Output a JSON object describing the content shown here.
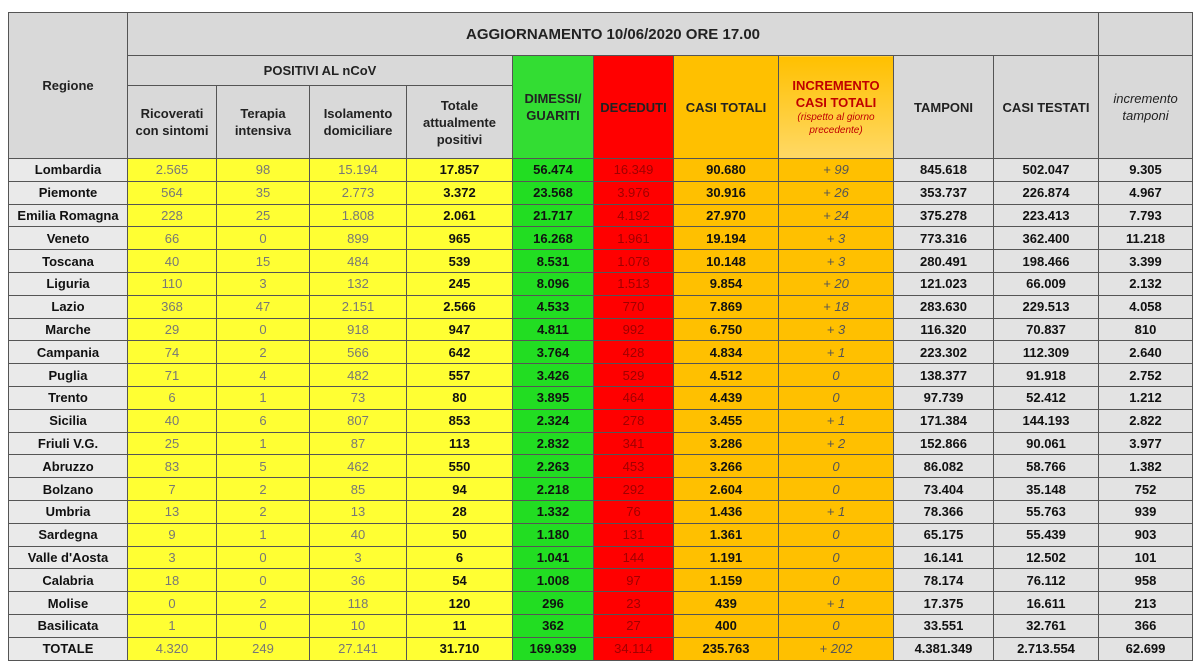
{
  "header": {
    "title": "AGGIORNAMENTO 10/06/2020 ORE 17.00",
    "regione": "Regione",
    "group": "POSITIVI AL nCoV",
    "columns": [
      "Ricoverati con sintomi",
      "Terapia intensiva",
      "Isolamento domiciliare",
      "Totale attualmente positivi",
      "DIMESSI/ GUARITI",
      "DECEDUTI",
      "CASI TOTALI",
      "INCREMENTO CASI TOTALI",
      "TAMPONI",
      "CASI TESTATI",
      "incremento tamponi"
    ],
    "incremento_note": "(rispetto al giorno precedente)"
  },
  "rows": [
    [
      "Lombardia",
      "2.565",
      "98",
      "15.194",
      "17.857",
      "56.474",
      "16.349",
      "90.680",
      "+ 99",
      "845.618",
      "502.047",
      "9.305"
    ],
    [
      "Piemonte",
      "564",
      "35",
      "2.773",
      "3.372",
      "23.568",
      "3.976",
      "30.916",
      "+ 26",
      "353.737",
      "226.874",
      "4.967"
    ],
    [
      "Emilia Romagna",
      "228",
      "25",
      "1.808",
      "2.061",
      "21.717",
      "4.192",
      "27.970",
      "+ 24",
      "375.278",
      "223.413",
      "7.793"
    ],
    [
      "Veneto",
      "66",
      "0",
      "899",
      "965",
      "16.268",
      "1.961",
      "19.194",
      "+ 3",
      "773.316",
      "362.400",
      "11.218"
    ],
    [
      "Toscana",
      "40",
      "15",
      "484",
      "539",
      "8.531",
      "1.078",
      "10.148",
      "+ 3",
      "280.491",
      "198.466",
      "3.399"
    ],
    [
      "Liguria",
      "110",
      "3",
      "132",
      "245",
      "8.096",
      "1.513",
      "9.854",
      "+ 20",
      "121.023",
      "66.009",
      "2.132"
    ],
    [
      "Lazio",
      "368",
      "47",
      "2.151",
      "2.566",
      "4.533",
      "770",
      "7.869",
      "+ 18",
      "283.630",
      "229.513",
      "4.058"
    ],
    [
      "Marche",
      "29",
      "0",
      "918",
      "947",
      "4.811",
      "992",
      "6.750",
      "+ 3",
      "116.320",
      "70.837",
      "810"
    ],
    [
      "Campania",
      "74",
      "2",
      "566",
      "642",
      "3.764",
      "428",
      "4.834",
      "+ 1",
      "223.302",
      "112.309",
      "2.640"
    ],
    [
      "Puglia",
      "71",
      "4",
      "482",
      "557",
      "3.426",
      "529",
      "4.512",
      "0",
      "138.377",
      "91.918",
      "2.752"
    ],
    [
      "Trento",
      "6",
      "1",
      "73",
      "80",
      "3.895",
      "464",
      "4.439",
      "0",
      "97.739",
      "52.412",
      "1.212"
    ],
    [
      "Sicilia",
      "40",
      "6",
      "807",
      "853",
      "2.324",
      "278",
      "3.455",
      "+ 1",
      "171.384",
      "144.193",
      "2.822"
    ],
    [
      "Friuli V.G.",
      "25",
      "1",
      "87",
      "113",
      "2.832",
      "341",
      "3.286",
      "+ 2",
      "152.866",
      "90.061",
      "3.977"
    ],
    [
      "Abruzzo",
      "83",
      "5",
      "462",
      "550",
      "2.263",
      "453",
      "3.266",
      "0",
      "86.082",
      "58.766",
      "1.382"
    ],
    [
      "Bolzano",
      "7",
      "2",
      "85",
      "94",
      "2.218",
      "292",
      "2.604",
      "0",
      "73.404",
      "35.148",
      "752"
    ],
    [
      "Umbria",
      "13",
      "2",
      "13",
      "28",
      "1.332",
      "76",
      "1.436",
      "+ 1",
      "78.366",
      "55.763",
      "939"
    ],
    [
      "Sardegna",
      "9",
      "1",
      "40",
      "50",
      "1.180",
      "131",
      "1.361",
      "0",
      "65.175",
      "55.439",
      "903"
    ],
    [
      "Valle d'Aosta",
      "3",
      "0",
      "3",
      "6",
      "1.041",
      "144",
      "1.191",
      "0",
      "16.141",
      "12.502",
      "101"
    ],
    [
      "Calabria",
      "18",
      "0",
      "36",
      "54",
      "1.008",
      "97",
      "1.159",
      "0",
      "78.174",
      "76.112",
      "958"
    ],
    [
      "Molise",
      "0",
      "2",
      "118",
      "120",
      "296",
      "23",
      "439",
      "+ 1",
      "17.375",
      "16.611",
      "213"
    ],
    [
      "Basilicata",
      "1",
      "0",
      "10",
      "11",
      "362",
      "27",
      "400",
      "0",
      "33.551",
      "32.761",
      "366"
    ],
    [
      "TOTALE",
      "4.320",
      "249",
      "27.141",
      "31.710",
      "169.939",
      "34.114",
      "235.763",
      "+ 202",
      "4.381.349",
      "2.713.554",
      "62.699"
    ]
  ]
}
